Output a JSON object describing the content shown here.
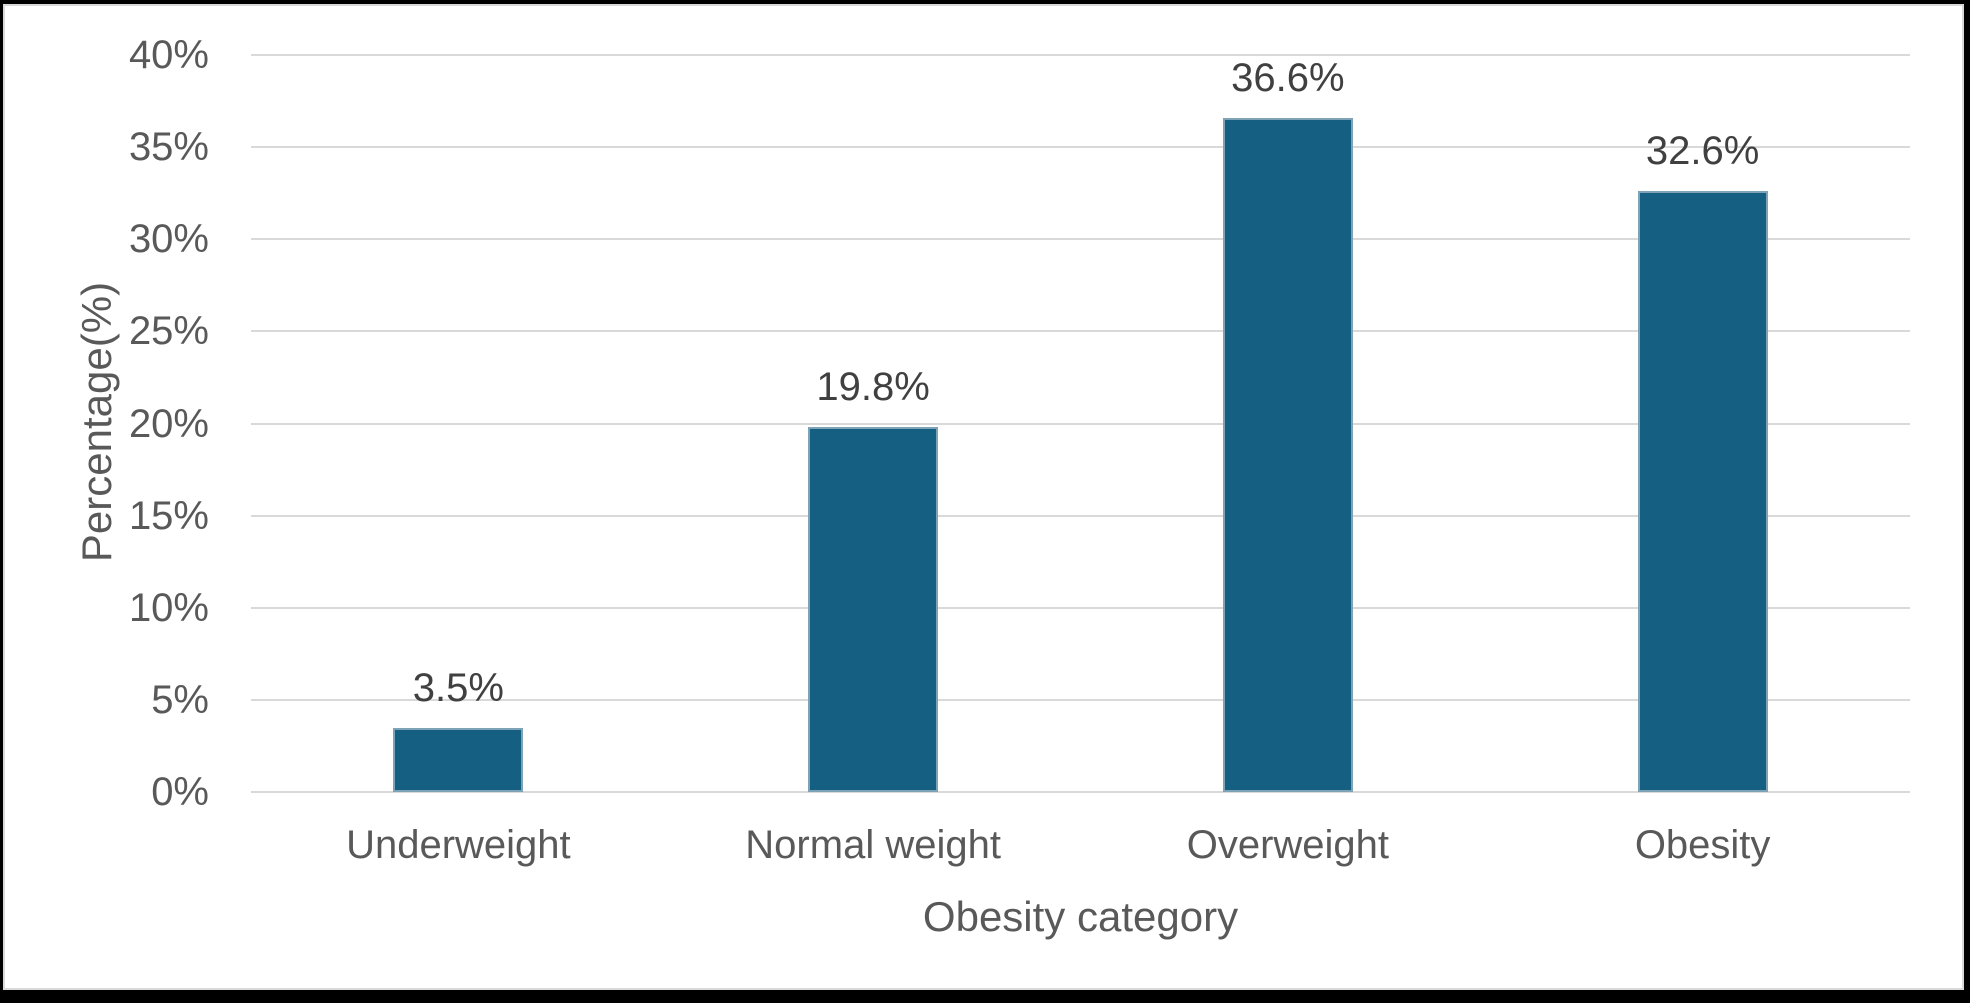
{
  "chart_data": {
    "type": "bar",
    "title": "",
    "categories": [
      "Underweight",
      "Normal weight",
      "Overweight",
      "Obesity"
    ],
    "values": [
      3.5,
      19.8,
      36.6,
      32.6
    ],
    "value_labels": [
      "3.5%",
      "19.8%",
      "36.6%",
      "32.6%"
    ],
    "xlabel": "Obesity category",
    "ylabel": "Percentage(%)",
    "ylim": [
      0,
      40
    ],
    "ytick_step": 5,
    "ytick_labels": [
      "0%",
      "5%",
      "10%",
      "15%",
      "20%",
      "25%",
      "30%",
      "35%",
      "40%"
    ],
    "grid": true,
    "legend": false,
    "bar_color": "#156082",
    "bar_edge_color": "#7ea2b6",
    "gridline_color": "#d9d9d9",
    "axis_text_color": "#595959",
    "data_label_color": "#404040",
    "frame_color": "#000000",
    "chart_border_color": "#d9d9d9",
    "background_color": "#ffffff"
  }
}
